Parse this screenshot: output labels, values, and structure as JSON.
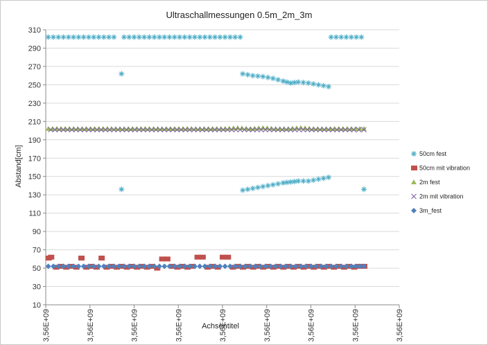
{
  "chart_data": {
    "type": "scatter",
    "title": "Ultraschallmessungen  0.5m_2m_3m",
    "xlabel": "Achsentitel",
    "ylabel": "Abstand[cm]",
    "ylim": [
      10,
      310
    ],
    "ytick_step": 20,
    "xlim": [
      0,
      7
    ],
    "xtick_labels": [
      "3,56E+09",
      "3,56E+09",
      "3,56E+09",
      "3,56E+09",
      "3,56E+09",
      "3,56E+09",
      "3,56E+09",
      "3,56E+09",
      "3,56E+09"
    ],
    "grid": "horizontal",
    "legend_position": "right",
    "series": [
      {
        "name": "50cm fest",
        "marker": "asterisk",
        "color": "#4bacc6",
        "points": [
          [
            0.05,
            302
          ],
          [
            0.15,
            302
          ],
          [
            0.25,
            302
          ],
          [
            0.35,
            302
          ],
          [
            0.45,
            302
          ],
          [
            0.55,
            302
          ],
          [
            0.65,
            302
          ],
          [
            0.75,
            302
          ],
          [
            0.85,
            302
          ],
          [
            0.95,
            302
          ],
          [
            1.05,
            302
          ],
          [
            1.15,
            302
          ],
          [
            1.25,
            302
          ],
          [
            1.35,
            302
          ],
          [
            1.5,
            262
          ],
          [
            1.5,
            136
          ],
          [
            1.55,
            302
          ],
          [
            1.65,
            302
          ],
          [
            1.75,
            302
          ],
          [
            1.85,
            302
          ],
          [
            1.95,
            302
          ],
          [
            2.05,
            302
          ],
          [
            2.15,
            302
          ],
          [
            2.25,
            302
          ],
          [
            2.35,
            302
          ],
          [
            2.45,
            302
          ],
          [
            2.55,
            302
          ],
          [
            2.65,
            302
          ],
          [
            2.75,
            302
          ],
          [
            2.85,
            302
          ],
          [
            2.95,
            302
          ],
          [
            3.05,
            302
          ],
          [
            3.15,
            302
          ],
          [
            3.25,
            302
          ],
          [
            3.35,
            302
          ],
          [
            3.45,
            302
          ],
          [
            3.55,
            302
          ],
          [
            3.65,
            302
          ],
          [
            3.75,
            302
          ],
          [
            3.85,
            302
          ],
          [
            3.9,
            262
          ],
          [
            4.1,
            260
          ],
          [
            4.3,
            259
          ],
          [
            4.5,
            257
          ],
          [
            4.7,
            254
          ],
          [
            4.85,
            252
          ],
          [
            5.0,
            253
          ],
          [
            5.2,
            252
          ],
          [
            5.4,
            250
          ],
          [
            5.6,
            248
          ],
          [
            3.9,
            135
          ],
          [
            4.1,
            137
          ],
          [
            4.3,
            139
          ],
          [
            4.5,
            141
          ],
          [
            4.7,
            143
          ],
          [
            4.85,
            144
          ],
          [
            5.0,
            145
          ],
          [
            5.2,
            145
          ],
          [
            5.4,
            147
          ],
          [
            5.6,
            149
          ],
          [
            5.65,
            302
          ],
          [
            5.75,
            302
          ],
          [
            5.85,
            302
          ],
          [
            5.95,
            302
          ],
          [
            6.05,
            302
          ],
          [
            6.15,
            302
          ],
          [
            6.25,
            302
          ],
          [
            6.3,
            136
          ]
        ]
      },
      {
        "name": "50cm mit vibration",
        "marker": "square",
        "color": "#c0504d",
        "points": [
          [
            0.05,
            61
          ],
          [
            0.1,
            62
          ],
          [
            0.2,
            51
          ],
          [
            0.3,
            52
          ],
          [
            0.4,
            51
          ],
          [
            0.5,
            52
          ],
          [
            0.6,
            51
          ],
          [
            0.7,
            61
          ],
          [
            0.8,
            51
          ],
          [
            0.9,
            52
          ],
          [
            1.0,
            51
          ],
          [
            1.1,
            61
          ],
          [
            1.2,
            51
          ],
          [
            1.3,
            52
          ],
          [
            1.4,
            51
          ],
          [
            1.5,
            52
          ],
          [
            1.6,
            51
          ],
          [
            1.7,
            52
          ],
          [
            1.8,
            51
          ],
          [
            1.9,
            52
          ],
          [
            2.0,
            51
          ],
          [
            2.1,
            52
          ],
          [
            2.2,
            50
          ],
          [
            2.3,
            60
          ],
          [
            2.4,
            60
          ],
          [
            2.5,
            52
          ],
          [
            2.6,
            51
          ],
          [
            2.7,
            52
          ],
          [
            2.8,
            51
          ],
          [
            2.9,
            52
          ],
          [
            3.0,
            62
          ],
          [
            3.1,
            62
          ],
          [
            3.2,
            51
          ],
          [
            3.3,
            52
          ],
          [
            3.4,
            51
          ],
          [
            3.5,
            62
          ],
          [
            3.6,
            62
          ],
          [
            3.7,
            51
          ],
          [
            3.8,
            52
          ],
          [
            3.9,
            51
          ],
          [
            4.0,
            52
          ],
          [
            4.1,
            51
          ],
          [
            4.2,
            52
          ],
          [
            4.3,
            51
          ],
          [
            4.4,
            52
          ],
          [
            4.5,
            51
          ],
          [
            4.6,
            52
          ],
          [
            4.7,
            51
          ],
          [
            4.8,
            52
          ],
          [
            4.9,
            51
          ],
          [
            5.0,
            52
          ],
          [
            5.1,
            51
          ],
          [
            5.2,
            52
          ],
          [
            5.3,
            51
          ],
          [
            5.4,
            52
          ],
          [
            5.5,
            51
          ],
          [
            5.6,
            52
          ],
          [
            5.7,
            51
          ],
          [
            5.8,
            52
          ],
          [
            5.9,
            51
          ],
          [
            6.0,
            52
          ],
          [
            6.1,
            51
          ],
          [
            6.2,
            52
          ],
          [
            6.3,
            52
          ]
        ]
      },
      {
        "name": "2m fest",
        "marker": "triangle",
        "color": "#9bbb59",
        "points": [
          [
            0.05,
            202
          ],
          [
            0.3,
            202
          ],
          [
            0.55,
            202
          ],
          [
            0.8,
            202
          ],
          [
            1.05,
            202
          ],
          [
            1.3,
            202
          ],
          [
            1.55,
            202
          ],
          [
            1.8,
            202
          ],
          [
            2.05,
            202
          ],
          [
            2.3,
            202
          ],
          [
            2.55,
            202
          ],
          [
            2.8,
            202
          ],
          [
            3.05,
            202
          ],
          [
            3.3,
            202
          ],
          [
            3.55,
            202
          ],
          [
            3.8,
            203
          ],
          [
            4.05,
            202
          ],
          [
            4.3,
            203
          ],
          [
            4.55,
            202
          ],
          [
            4.8,
            202
          ],
          [
            5.05,
            203
          ],
          [
            5.3,
            202
          ],
          [
            5.55,
            202
          ],
          [
            5.8,
            202
          ],
          [
            6.05,
            202
          ],
          [
            6.3,
            202
          ]
        ]
      },
      {
        "name": "2m mit vibration",
        "marker": "x",
        "color": "#8064a2",
        "points": [
          [
            0.1,
            201
          ],
          [
            0.35,
            201
          ],
          [
            0.6,
            201
          ],
          [
            0.85,
            201
          ],
          [
            1.1,
            201
          ],
          [
            1.35,
            201
          ],
          [
            1.6,
            201
          ],
          [
            1.85,
            201
          ],
          [
            2.1,
            201
          ],
          [
            2.35,
            201
          ],
          [
            2.6,
            201
          ],
          [
            2.85,
            201
          ],
          [
            3.1,
            201
          ],
          [
            3.35,
            201
          ],
          [
            3.6,
            201
          ],
          [
            3.85,
            201
          ],
          [
            4.1,
            201
          ],
          [
            4.35,
            201
          ],
          [
            4.6,
            201
          ],
          [
            4.85,
            201
          ],
          [
            5.1,
            201
          ],
          [
            5.35,
            201
          ],
          [
            5.6,
            201
          ],
          [
            5.85,
            201
          ],
          [
            6.1,
            201
          ],
          [
            6.3,
            201
          ]
        ]
      },
      {
        "name": "3m_fest",
        "marker": "diamond",
        "color": "#4f81bd",
        "points": [
          [
            0.05,
            52
          ],
          [
            0.25,
            52
          ],
          [
            0.45,
            52
          ],
          [
            0.65,
            52
          ],
          [
            0.85,
            52
          ],
          [
            1.05,
            52
          ],
          [
            1.25,
            52
          ],
          [
            1.45,
            52
          ],
          [
            1.65,
            52
          ],
          [
            1.85,
            52
          ],
          [
            2.05,
            52
          ],
          [
            2.25,
            52
          ],
          [
            2.45,
            52
          ],
          [
            2.65,
            52
          ],
          [
            2.85,
            52
          ],
          [
            3.05,
            52
          ],
          [
            3.25,
            52
          ],
          [
            3.45,
            52
          ],
          [
            3.65,
            52
          ],
          [
            3.85,
            52
          ],
          [
            4.05,
            52
          ],
          [
            4.25,
            52
          ],
          [
            4.45,
            52
          ],
          [
            4.65,
            52
          ],
          [
            4.85,
            52
          ],
          [
            5.05,
            52
          ],
          [
            5.25,
            52
          ],
          [
            5.45,
            52
          ],
          [
            5.65,
            52
          ],
          [
            5.85,
            52
          ],
          [
            6.05,
            52
          ],
          [
            6.3,
            52
          ]
        ]
      }
    ]
  }
}
